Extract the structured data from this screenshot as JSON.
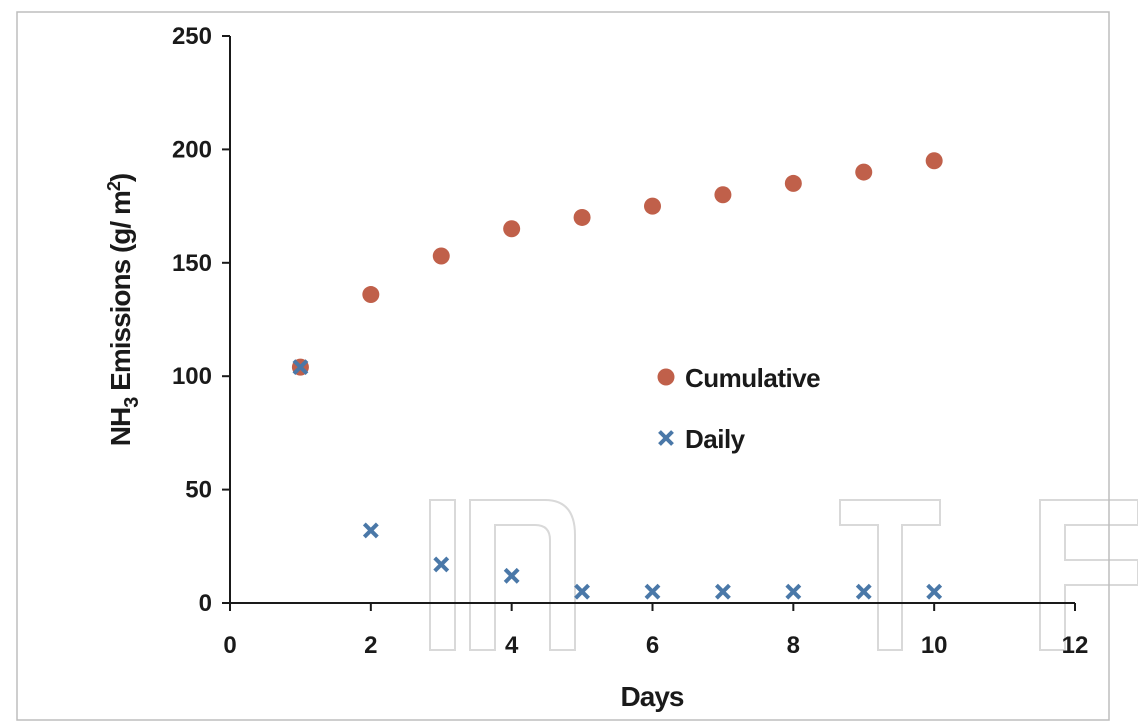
{
  "chart_data": {
    "type": "scatter",
    "xlabel": "Days",
    "ylabel_main": "NH",
    "ylabel_sub": "3",
    "ylabel_rest": " Emissions (g/ m",
    "ylabel_sup": "2",
    "ylabel_end": ")",
    "xlim": [
      0,
      12
    ],
    "ylim": [
      0,
      250
    ],
    "xticks": [
      "0",
      "2",
      "4",
      "6",
      "8",
      "10",
      "12"
    ],
    "yticks": [
      "0",
      "50",
      "100",
      "150",
      "200",
      "250"
    ],
    "grid": false,
    "legend_position": "center-right",
    "series": [
      {
        "name": "Cumulative",
        "marker": "circle",
        "color": "#C0604A",
        "x": [
          1,
          2,
          3,
          4,
          5,
          6,
          7,
          8,
          9,
          10
        ],
        "y": [
          104,
          136,
          153,
          165,
          170,
          175,
          180,
          185,
          190,
          195
        ]
      },
      {
        "name": "Daily",
        "marker": "x",
        "color": "#4A78A8",
        "x": [
          1,
          2,
          3,
          4,
          5,
          6,
          7,
          8,
          9,
          10
        ],
        "y": [
          104,
          32,
          17,
          12,
          5,
          5,
          5,
          5,
          5,
          5
        ]
      }
    ]
  }
}
